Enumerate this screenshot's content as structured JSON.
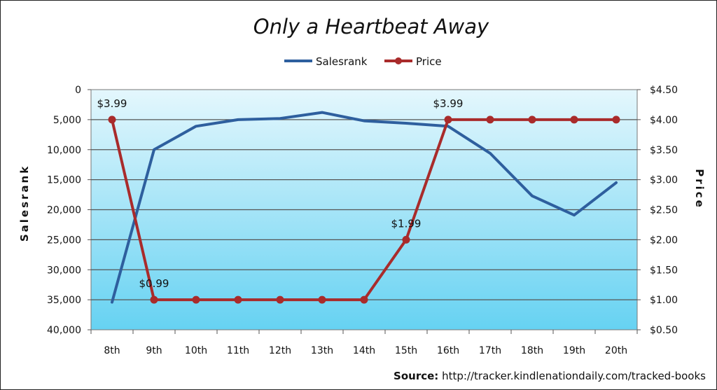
{
  "chart_data": {
    "type": "line",
    "title": "Only a Heartbeat Away",
    "categories": [
      "8th",
      "9th",
      "10th",
      "11th",
      "12th",
      "13th",
      "14th",
      "15th",
      "16th",
      "17th",
      "18th",
      "19th",
      "20th"
    ],
    "series": [
      {
        "name": "Salesrank",
        "axis": "left",
        "color": "#2e5f9e",
        "values": [
          35400,
          10000,
          6100,
          5000,
          4800,
          3800,
          5200,
          5600,
          6100,
          10600,
          17700,
          20900,
          15500
        ]
      },
      {
        "name": "Price",
        "axis": "right",
        "color": "#a92b2b",
        "values": [
          4.0,
          1.0,
          1.0,
          1.0,
          1.0,
          1.0,
          1.0,
          2.0,
          4.0,
          4.0,
          4.0,
          4.0,
          4.0
        ]
      }
    ],
    "y_left": {
      "label": "Salesrank",
      "range": [
        0,
        40000
      ],
      "inverted": true,
      "ticks": [
        0,
        5000,
        10000,
        15000,
        20000,
        25000,
        30000,
        35000,
        40000
      ],
      "tick_labels": [
        "0",
        "5,000",
        "10,000",
        "15,000",
        "20,000",
        "25,000",
        "30,000",
        "35,000",
        "40,000"
      ]
    },
    "y_right": {
      "label": "Price",
      "range": [
        0.5,
        4.5
      ],
      "ticks": [
        4.5,
        4.0,
        3.5,
        3.0,
        2.5,
        2.0,
        1.5,
        1.0,
        0.5
      ],
      "tick_labels": [
        "$4.50",
        "$4.00",
        "$3.50",
        "$3.00",
        "$2.50",
        "$2.00",
        "$1.50",
        "$1.00",
        "$0.50"
      ]
    },
    "annotations": [
      {
        "text": "$3.99",
        "index": 0
      },
      {
        "text": "$0.99",
        "index": 1
      },
      {
        "text": "$1.99",
        "index": 7
      },
      {
        "text": "$3.99",
        "index": 8
      }
    ],
    "legend": "top",
    "grid": true,
    "colors": {
      "plot_top": "#e4f7fd",
      "plot_bottom": "#66d2f2",
      "grid": "#555555"
    }
  },
  "source": {
    "label": "Source:",
    "url": "http://tracker.kindlenationdaily.com/tracked-books"
  }
}
